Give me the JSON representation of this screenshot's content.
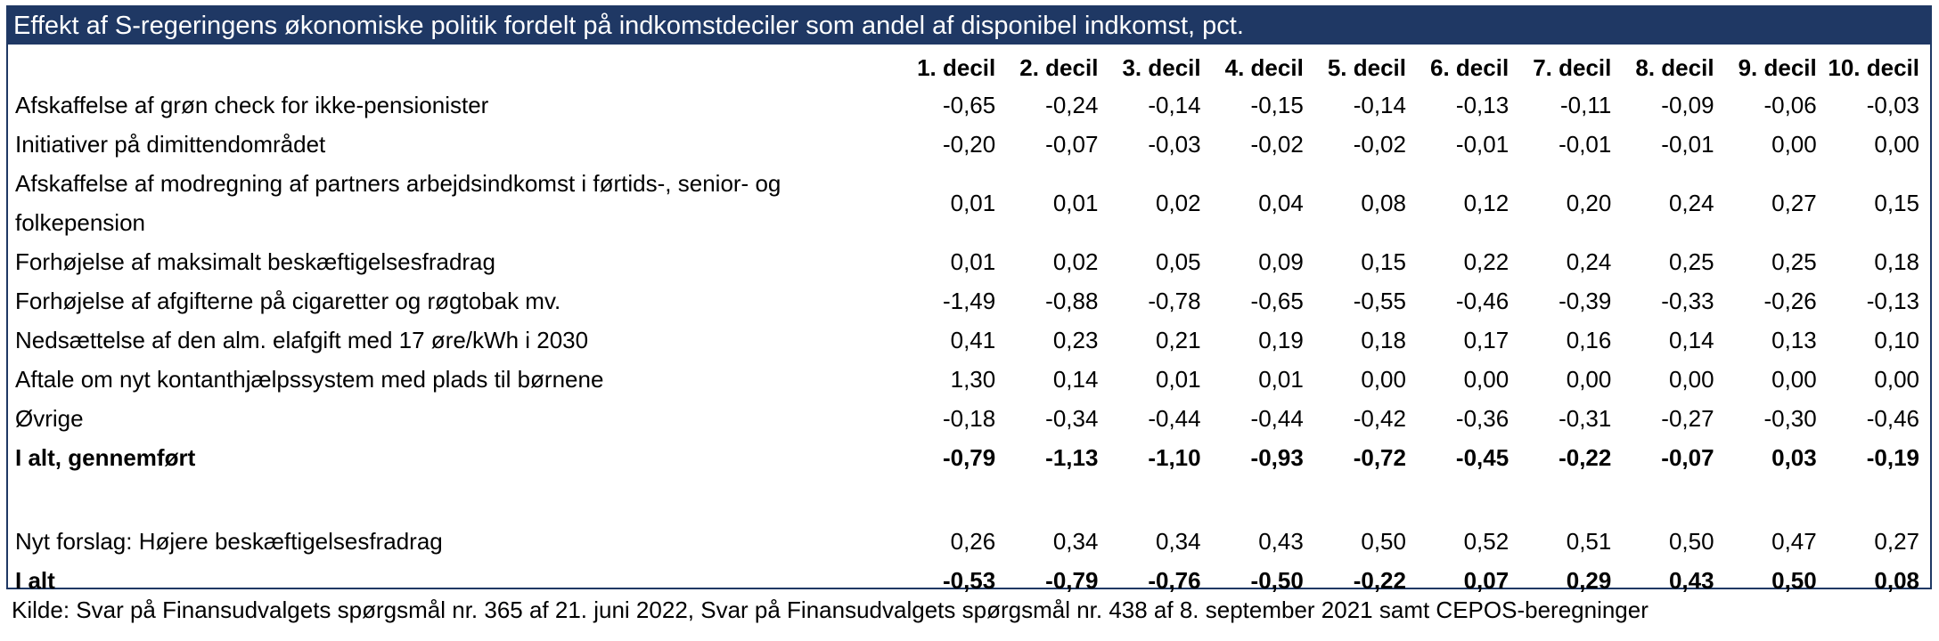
{
  "title": "Effekt af S-regeringens økonomiske politik fordelt på indkomstdeciler som andel af disponibel indkomst, pct.",
  "columns": [
    "1. decil",
    "2. decil",
    "3. decil",
    "4. decil",
    "5. decil",
    "6. decil",
    "7. decil",
    "8. decil",
    "9. decil",
    "10. decil"
  ],
  "rows": [
    {
      "label": "Afskaffelse af grøn check for ikke-pensionister",
      "values": [
        "-0,65",
        "-0,24",
        "-0,14",
        "-0,15",
        "-0,14",
        "-0,13",
        "-0,11",
        "-0,09",
        "-0,06",
        "-0,03"
      ]
    },
    {
      "label": "Initiativer på dimittendområdet",
      "values": [
        "-0,20",
        "-0,07",
        "-0,03",
        "-0,02",
        "-0,02",
        "-0,01",
        "-0,01",
        "-0,01",
        "0,00",
        "0,00"
      ]
    },
    {
      "label": "Afskaffelse af modregning af partners arbejdsindkomst i førtids-, senior- og folkepension",
      "values": [
        "0,01",
        "0,01",
        "0,02",
        "0,04",
        "0,08",
        "0,12",
        "0,20",
        "0,24",
        "0,27",
        "0,15"
      ]
    },
    {
      "label": "Forhøjelse af maksimalt beskæftigelsesfradrag",
      "values": [
        "0,01",
        "0,02",
        "0,05",
        "0,09",
        "0,15",
        "0,22",
        "0,24",
        "0,25",
        "0,25",
        "0,18"
      ]
    },
    {
      "label": "Forhøjelse af afgifterne på cigaretter og røgtobak mv.",
      "values": [
        "-1,49",
        "-0,88",
        "-0,78",
        "-0,65",
        "-0,55",
        "-0,46",
        "-0,39",
        "-0,33",
        "-0,26",
        "-0,13"
      ]
    },
    {
      "label": "Nedsættelse af den alm. elafgift med 17 øre/kWh i 2030",
      "values": [
        "0,41",
        "0,23",
        "0,21",
        "0,19",
        "0,18",
        "0,17",
        "0,16",
        "0,14",
        "0,13",
        "0,10"
      ]
    },
    {
      "label": "Aftale om nyt kontanthjælpssystem med plads til børnene",
      "values": [
        "1,30",
        "0,14",
        "0,01",
        "0,01",
        "0,00",
        "0,00",
        "0,00",
        "0,00",
        "0,00",
        "0,00"
      ]
    },
    {
      "label": "Øvrige",
      "values": [
        "-0,18",
        "-0,34",
        "-0,44",
        "-0,44",
        "-0,42",
        "-0,36",
        "-0,31",
        "-0,27",
        "-0,30",
        "-0,46"
      ]
    },
    {
      "label": "I alt, gennemført",
      "values": [
        "-0,79",
        "-1,13",
        "-1,10",
        "-0,93",
        "-0,72",
        "-0,45",
        "-0,22",
        "-0,07",
        "0,03",
        "-0,19"
      ]
    },
    {
      "label": "Nyt forslag: Højere beskæftigelsesfradrag",
      "values": [
        "0,26",
        "0,34",
        "0,34",
        "0,43",
        "0,50",
        "0,52",
        "0,51",
        "0,50",
        "0,47",
        "0,27"
      ]
    },
    {
      "label": "I alt",
      "values": [
        "-0,53",
        "-0,79",
        "-0,76",
        "-0,50",
        "-0,22",
        "0,07",
        "0,29",
        "0,43",
        "0,50",
        "0,08"
      ]
    }
  ],
  "source": "Kilde: Svar på Finansudvalgets spørgsmål nr. 365  af 21. juni 2022, Svar på Finansudvalgets spørgsmål nr. 438 af 8. september 2021 samt CEPOS-beregninger",
  "colors": {
    "title_background": "#1f3864",
    "title_text": "#ffffff"
  }
}
